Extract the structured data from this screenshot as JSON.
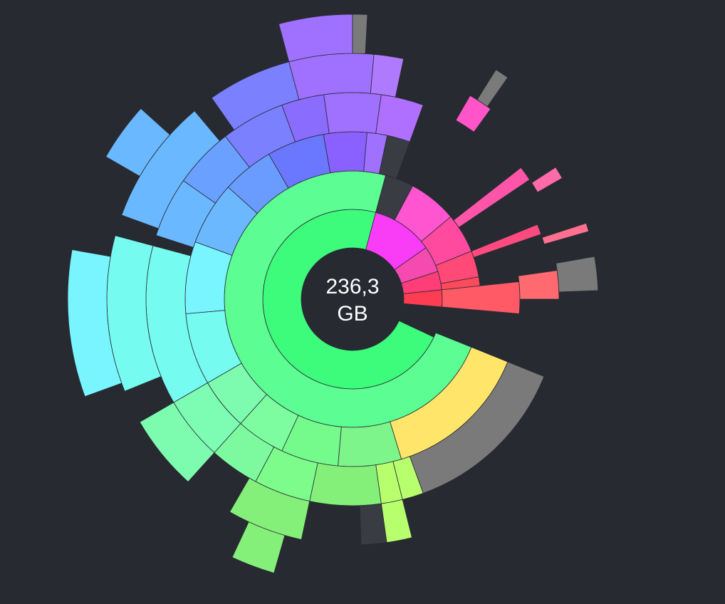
{
  "center_label": {
    "value": "236,3",
    "unit": "GB"
  }
}
